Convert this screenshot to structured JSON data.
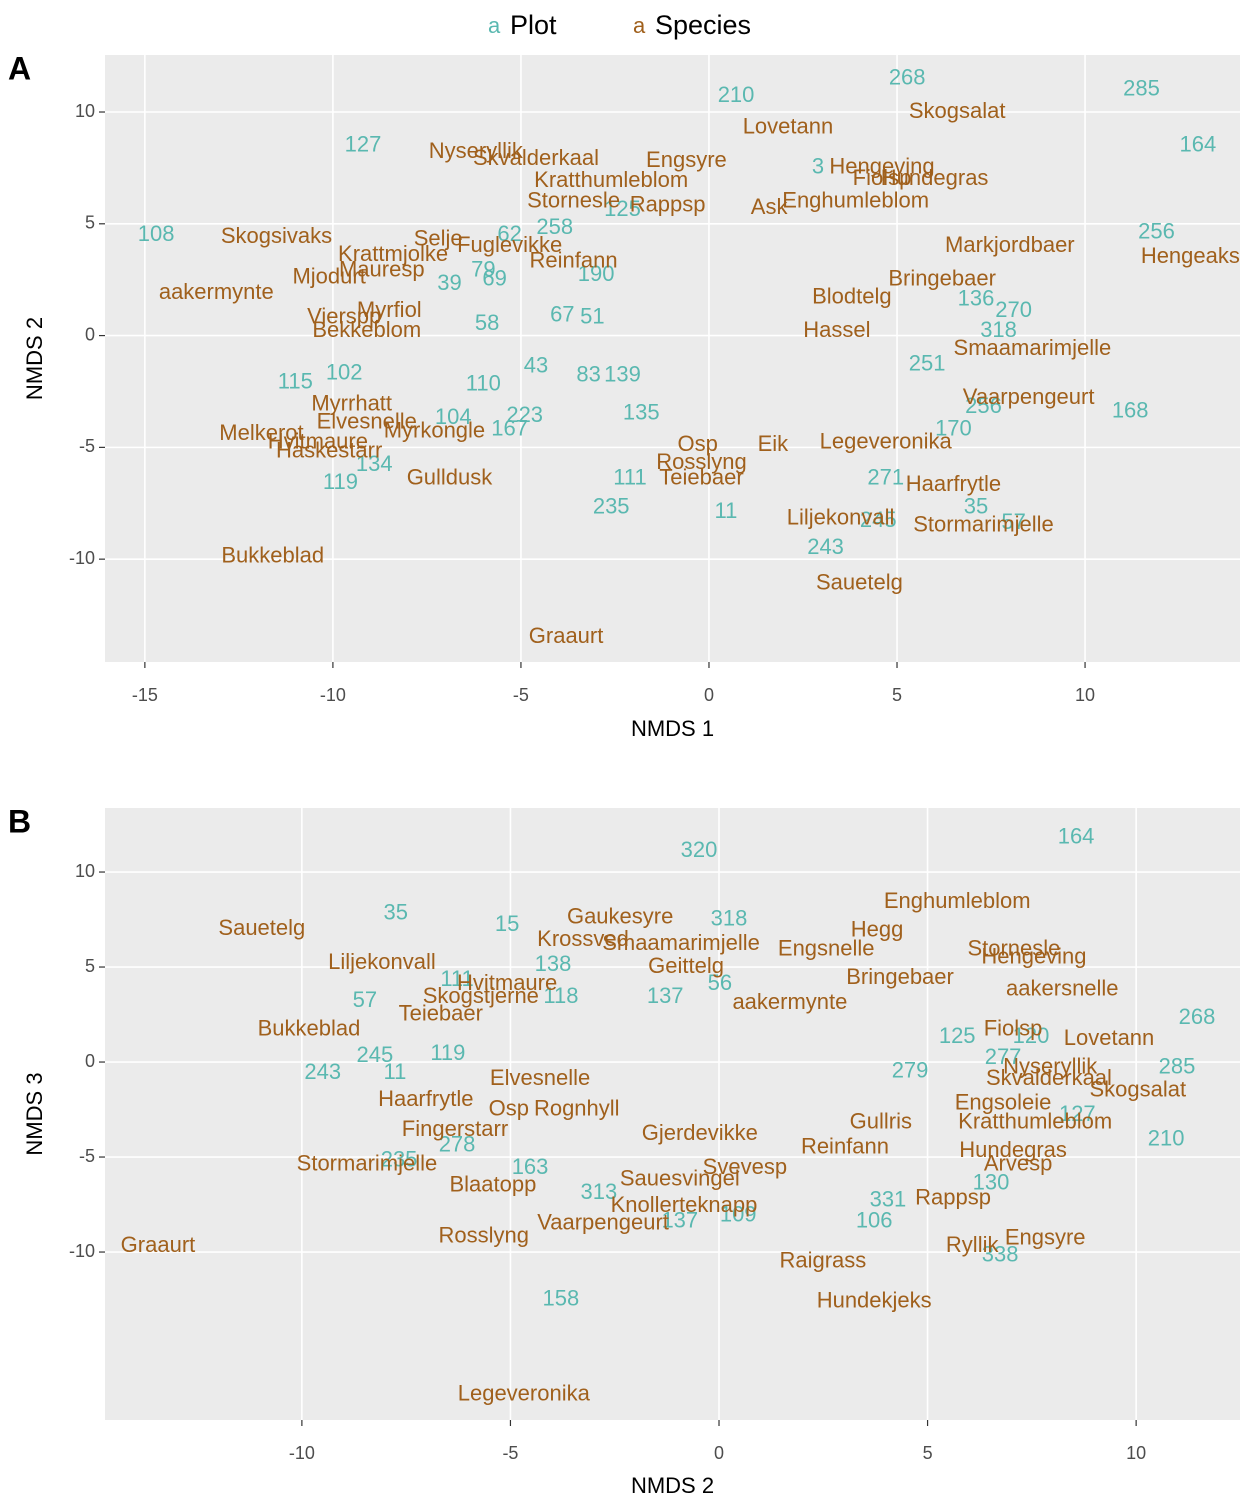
{
  "chart_data": [
    {
      "type": "scatter",
      "tag": "A",
      "legend_key": "a",
      "xlabel": "NMDS 1",
      "ylabel": "NMDS 2",
      "xlim": [
        -16.06,
        14.12
      ],
      "ylim": [
        -14.6,
        12.55
      ],
      "xticks": [
        -15,
        -10,
        -5,
        0,
        5,
        10
      ],
      "yticks": [
        -10,
        -5,
        0,
        5,
        10
      ],
      "grid": true,
      "series": [
        {
          "name": "Plot",
          "color": "#5ab8b0",
          "labels": [
            "268",
            "210",
            "285",
            "164",
            "127",
            "108",
            "256",
            "258",
            "62",
            "79",
            "69",
            "39",
            "58",
            "115",
            "102",
            "110",
            "43",
            "83",
            "139",
            "223",
            "104",
            "167",
            "119",
            "134",
            "111",
            "235",
            "11",
            "243",
            "35",
            "57",
            "168",
            "136",
            "270",
            "318",
            "251",
            "256",
            "170",
            "271",
            "245",
            "135",
            "3",
            "190",
            "67",
            "51",
            "125"
          ],
          "x": [
            5.27,
            0.72,
            11.5,
            13.0,
            -9.2,
            -14.7,
            11.9,
            -4.1,
            -5.3,
            -6.0,
            -5.7,
            -6.9,
            -5.9,
            -11.0,
            -9.7,
            -6.0,
            -4.6,
            -3.2,
            -2.3,
            -4.9,
            -6.8,
            -5.3,
            -9.8,
            -8.9,
            -2.1,
            -2.6,
            0.45,
            3.1,
            7.1,
            8.1,
            11.2,
            7.1,
            8.1,
            7.7,
            5.8,
            7.3,
            6.5,
            4.7,
            4.5,
            -1.8,
            2.9,
            -3.0,
            -3.9,
            -3.1,
            -2.3
          ],
          "values": [
            11.5,
            10.7,
            11.0,
            8.5,
            8.5,
            4.5,
            4.6,
            4.8,
            4.5,
            2.9,
            2.5,
            2.3,
            0.5,
            -2.1,
            -1.7,
            -2.2,
            -1.4,
            -1.8,
            -1.8,
            -3.6,
            -3.7,
            -4.2,
            -6.6,
            -5.8,
            -6.4,
            -7.7,
            -7.9,
            -9.5,
            -7.7,
            -8.4,
            -3.4,
            1.6,
            1.1,
            0.2,
            -1.3,
            -3.2,
            -4.2,
            -6.4,
            -8.3,
            -3.5,
            7.5,
            2.7,
            0.9,
            0.8,
            5.6
          ]
        },
        {
          "name": "Species",
          "color": "#a0601c",
          "labels": [
            "Lovetann",
            "Skogsalat",
            "Nyseryllik",
            "Skvalderkaal",
            "Engsyre",
            "Hengeving",
            "Kratthumleblom",
            "Enghumleblom",
            "Ask",
            "Stornesle",
            "Rappsp",
            "Fiolsp",
            "Hundegras",
            "Skogsivaks",
            "Selje",
            "Fuglevikke",
            "Krattmjolke",
            "Mjodurt",
            "Mauresp",
            "aakermynte",
            "Reinfann",
            "Hengeaks",
            "Markjordbaer",
            "Bringebaer",
            "Smaamarimjelle",
            "Myrfiol",
            "Vierspp",
            "Bekkeblom",
            "Myrrhatt",
            "Elvesnelle",
            "Myrkongle",
            "Melkerot",
            "Hvitmaure",
            "Haskestarr",
            "Gulldusk",
            "Bukkeblad",
            "Graaurt",
            "Liljekonvall",
            "Stormarimjelle",
            "Sauetelg",
            "Teiebaer",
            "Rosslyng",
            "Legeveronika",
            "Haarfrytle",
            "Vaarpengeurt",
            "Hassel",
            "Blodtelg",
            "Osp",
            "Eik"
          ],
          "x": [
            2.1,
            6.6,
            -6.2,
            -4.6,
            -0.6,
            4.6,
            -2.6,
            3.9,
            1.6,
            -3.6,
            -1.1,
            4.6,
            6.0,
            -11.5,
            -7.2,
            -5.3,
            -8.4,
            -10.1,
            -8.7,
            -13.1,
            -3.6,
            12.8,
            8.0,
            6.2,
            8.6,
            -8.5,
            -9.7,
            -9.1,
            -9.5,
            -9.1,
            -7.3,
            -11.9,
            -10.4,
            -10.1,
            -6.9,
            -11.6,
            -3.8,
            3.5,
            7.3,
            4.0,
            -0.2,
            -0.2,
            4.7,
            6.5,
            8.5,
            3.4,
            3.8,
            -0.3,
            1.7
          ],
          "values": [
            9.3,
            10.0,
            8.2,
            7.9,
            7.8,
            7.5,
            6.9,
            6.0,
            5.7,
            6.0,
            5.8,
            7.0,
            7.0,
            4.4,
            4.3,
            4.0,
            3.6,
            2.6,
            2.9,
            1.9,
            3.3,
            3.5,
            4.0,
            2.5,
            -0.6,
            1.1,
            0.8,
            0.2,
            -3.1,
            -3.9,
            -4.3,
            -4.4,
            -4.8,
            -5.2,
            -6.4,
            -9.9,
            -13.5,
            -8.2,
            -8.5,
            -11.1,
            -6.4,
            -5.7,
            -4.8,
            -6.7,
            -2.8,
            0.2,
            1.7,
            -4.9,
            -4.9
          ]
        }
      ]
    },
    {
      "type": "scatter",
      "tag": "B",
      "xlabel": "NMDS 2",
      "ylabel": "NMDS 3",
      "xlim": [
        -14.72,
        12.49
      ],
      "ylim": [
        -18.84,
        13.37
      ],
      "xticks": [
        -10,
        -5,
        0,
        5,
        10
      ],
      "yticks": [
        -10,
        -5,
        0,
        5,
        10
      ],
      "grid": true,
      "series": [
        {
          "name": "Plot",
          "color": "#5ab8b0",
          "labels": [
            "164",
            "320",
            "35",
            "15",
            "318",
            "138",
            "118",
            "111",
            "57",
            "245",
            "243",
            "11",
            "119",
            "268",
            "285",
            "210",
            "127",
            "277",
            "279",
            "125",
            "120",
            "130",
            "106",
            "331",
            "158",
            "235",
            "278",
            "163",
            "313",
            "137",
            "109",
            "137",
            "56",
            "338"
          ],
          "x": [
            8.56,
            -0.48,
            -7.75,
            -5.08,
            0.24,
            -3.98,
            -3.79,
            -6.28,
            -8.49,
            -8.25,
            -9.5,
            -7.77,
            -6.5,
            11.46,
            10.98,
            10.72,
            8.59,
            6.81,
            4.58,
            5.71,
            7.48,
            6.52,
            3.72,
            4.05,
            -3.79,
            -7.67,
            -6.28,
            -4.53,
            -2.88,
            -0.94,
            0.46,
            -1.29,
            0.02,
            6.74
          ],
          "values": [
            11.8,
            11.1,
            7.8,
            7.2,
            7.5,
            5.1,
            3.4,
            4.3,
            3.2,
            0.3,
            -0.6,
            -0.6,
            0.4,
            2.3,
            -0.3,
            -4.1,
            -2.8,
            0.2,
            -0.5,
            1.3,
            1.3,
            -6.4,
            -8.4,
            -7.3,
            -12.5,
            -5.2,
            -4.4,
            -5.6,
            -6.9,
            -8.4,
            -8.1,
            3.4,
            4.1,
            -10.2
          ]
        },
        {
          "name": "Species",
          "color": "#a0601c",
          "labels": [
            "Enghumleblom",
            "Sauetelg",
            "Gaukesyre",
            "Krossved",
            "Smaamarimjelle",
            "Hegg",
            "Engsnelle",
            "Stornesle",
            "Hengeving",
            "Liljekonvall",
            "Hvitmaure",
            "Geittelg",
            "Bringebaer",
            "aakersnelle",
            "Skogstjerne",
            "aakermynte",
            "Teiebaer",
            "Bukkeblad",
            "Fiolsp",
            "Lovetann",
            "Nyseryllik",
            "Skvalderkaal",
            "Skogsalat",
            "Haarfrytle",
            "Elvesnelle",
            "Osp",
            "Rognhyll",
            "Fingerstarr",
            "Gjerdevikke",
            "Kratthumleblom",
            "Engsoleie",
            "Gullris",
            "Reinfann",
            "Hundegras",
            "Arvesp",
            "Stormarimjelle",
            "Blaatopp",
            "Svevesp",
            "Sauesvingel",
            "Rappsp",
            "Knollerteknapp",
            "Vaarpengeurt",
            "Rosslyng",
            "Graaurt",
            "Engsyre",
            "Ryllik",
            "Raigrass",
            "Hundekjeks",
            "Legeveronika"
          ],
          "x": [
            5.71,
            -10.96,
            -2.37,
            -3.26,
            -0.91,
            3.79,
            2.57,
            7.07,
            7.55,
            -8.08,
            -5.08,
            -0.79,
            4.34,
            8.23,
            -5.71,
            1.7,
            -6.67,
            -9.83,
            7.05,
            9.35,
            7.94,
            7.91,
            10.04,
            -7.03,
            -4.29,
            -5.04,
            -3.41,
            -6.33,
            -0.46,
            7.58,
            6.81,
            3.88,
            3.02,
            7.05,
            7.17,
            -8.44,
            -5.42,
            0.62,
            -0.94,
            5.61,
            -0.84,
            -2.78,
            -5.64,
            -13.45,
            7.82,
            6.07,
            2.49,
            3.72,
            -4.68
          ],
          "values": [
            8.4,
            7.0,
            7.6,
            6.4,
            6.2,
            6.9,
            5.9,
            5.9,
            5.5,
            5.2,
            4.1,
            5.0,
            4.4,
            3.8,
            3.4,
            3.1,
            2.5,
            1.7,
            1.7,
            1.2,
            -0.3,
            -0.9,
            -1.5,
            -2.0,
            -0.9,
            -2.5,
            -2.5,
            -3.6,
            -3.8,
            -3.2,
            -2.2,
            -3.2,
            -4.5,
            -4.7,
            -5.4,
            -5.4,
            -6.5,
            -5.6,
            -6.2,
            -7.2,
            -7.6,
            -8.5,
            -9.2,
            -9.7,
            -9.3,
            -9.7,
            -10.5,
            -12.6,
            -17.5
          ]
        }
      ]
    }
  ]
}
